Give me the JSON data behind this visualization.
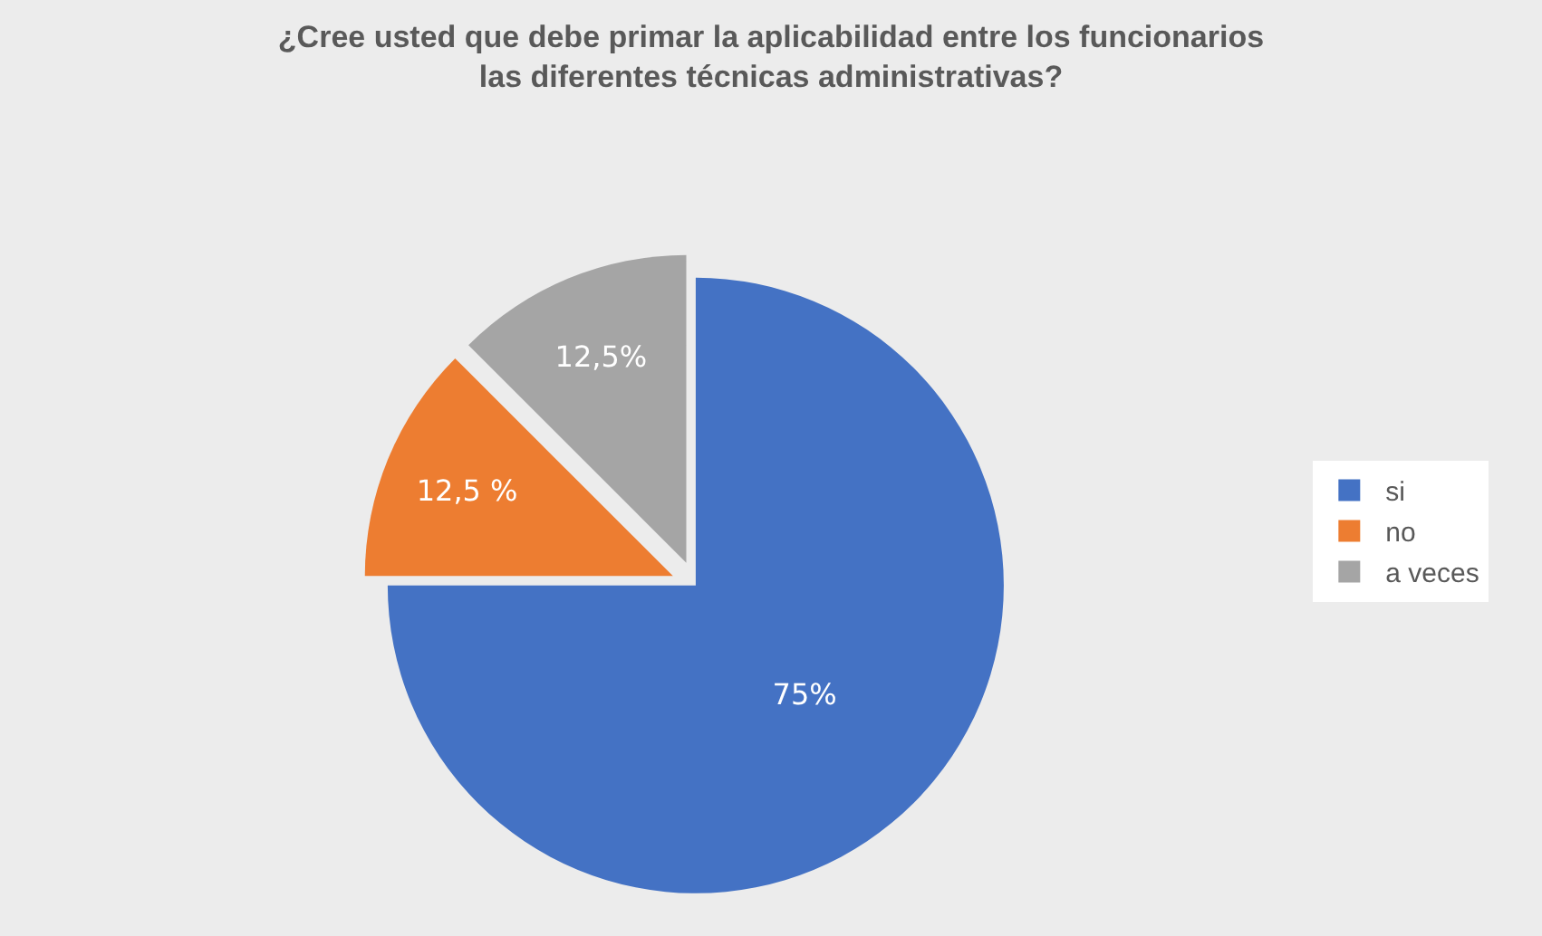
{
  "chart_data": {
    "type": "pie",
    "title": "¿Cree usted que debe primar la aplicabilidad entre los funcionarios las diferentes técnicas administrativas?",
    "categories": [
      "si",
      "no",
      "a veces"
    ],
    "values": [
      75,
      12.5,
      12.5
    ],
    "colors": [
      "#4472c4",
      "#ed7d31",
      "#a5a5a5"
    ],
    "value_labels": [
      "75%",
      "12,5 %",
      "12,5%"
    ],
    "legend": "right"
  }
}
